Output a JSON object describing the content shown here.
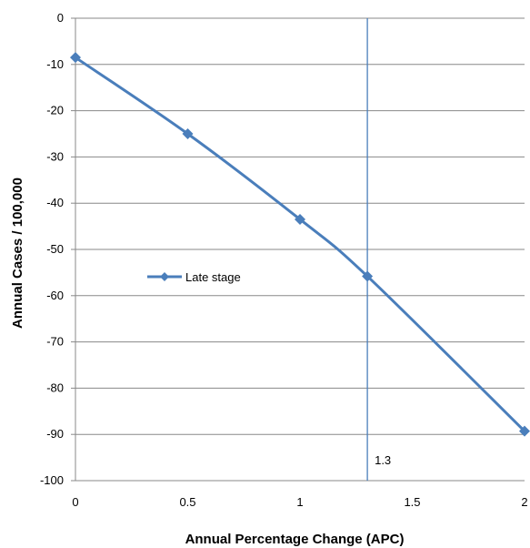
{
  "chart_data": {
    "type": "line",
    "title": "",
    "xlabel": "Annual Percentage Change (APC)",
    "ylabel": "Annual Cases / 100,000",
    "xlim": [
      0,
      2
    ],
    "ylim": [
      -100,
      0
    ],
    "x_ticks": [
      0,
      0.5,
      1,
      1.5,
      2
    ],
    "x_tick_labels": [
      "0",
      "0.5",
      "1",
      "1.5",
      "2"
    ],
    "y_ticks": [
      0,
      -10,
      -20,
      -30,
      -40,
      -50,
      -60,
      -70,
      -80,
      -90,
      -100
    ],
    "y_tick_labels": [
      "0",
      "-10",
      "-20",
      "-30",
      "-40",
      "-50",
      "-60",
      "-70",
      "-80",
      "-90",
      "-100"
    ],
    "grid": "horizontal",
    "legend_placement": "center-left",
    "series": [
      {
        "name": "Late stage",
        "color": "#4a7ebb",
        "marker": "diamond",
        "x": [
          0,
          0.5,
          1,
          1.3,
          2
        ],
        "y": [
          -8.5,
          -25,
          -43.5,
          -55.8,
          -89.3
        ]
      }
    ],
    "reference_line": {
      "x": 1.3,
      "label": "1.3",
      "color": "#4a7ebb"
    }
  }
}
